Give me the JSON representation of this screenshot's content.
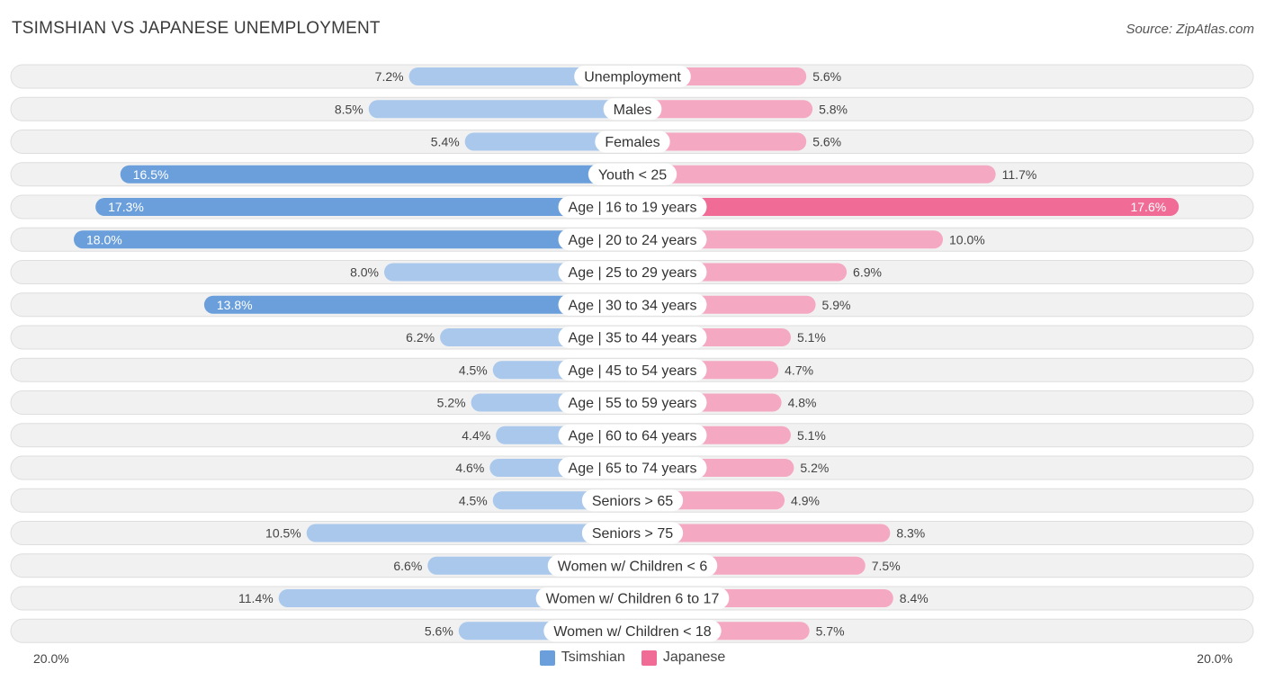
{
  "colors": {
    "tsimshian": "#6a9fdb",
    "tsimshian_light": "#a9c8ec",
    "japanese": "#f06b96",
    "japanese_light": "#f5a8c1",
    "row_bg": "#f1f1f1",
    "row_border": "#dedede"
  },
  "chart_data": {
    "type": "bar",
    "orientation": "diverging-horizontal",
    "title": "TSIMSHIAN VS JAPANESE UNEMPLOYMENT",
    "source": "Source: ZipAtlas.com",
    "axis_min_label": "20.0%",
    "axis_max_label": "20.0%",
    "max_value": 20,
    "categories": [
      "Unemployment",
      "Males",
      "Females",
      "Youth < 25",
      "Age | 16 to 19 years",
      "Age | 20 to 24 years",
      "Age | 25 to 29 years",
      "Age | 30 to 34 years",
      "Age | 35 to 44 years",
      "Age | 45 to 54 years",
      "Age | 55 to 59 years",
      "Age | 60 to 64 years",
      "Age | 65 to 74 years",
      "Seniors > 65",
      "Seniors > 75",
      "Women w/ Children < 6",
      "Women w/ Children 6 to 17",
      "Women w/ Children < 18"
    ],
    "series": [
      {
        "name": "Tsimshian",
        "values": [
          7.2,
          8.5,
          5.4,
          16.5,
          17.3,
          18.0,
          8.0,
          13.8,
          6.2,
          4.5,
          5.2,
          4.4,
          4.6,
          4.5,
          10.5,
          6.6,
          11.4,
          5.6
        ],
        "labels": [
          "7.2%",
          "8.5%",
          "5.4%",
          "16.5%",
          "17.3%",
          "18.0%",
          "8.0%",
          "13.8%",
          "6.2%",
          "4.5%",
          "5.2%",
          "4.4%",
          "4.6%",
          "4.5%",
          "10.5%",
          "6.6%",
          "11.4%",
          "5.6%"
        ]
      },
      {
        "name": "Japanese",
        "values": [
          5.6,
          5.8,
          5.6,
          11.7,
          17.6,
          10.0,
          6.9,
          5.9,
          5.1,
          4.7,
          4.8,
          5.1,
          5.2,
          4.9,
          8.3,
          7.5,
          8.4,
          5.7
        ],
        "labels": [
          "5.6%",
          "5.8%",
          "5.6%",
          "11.7%",
          "17.6%",
          "10.0%",
          "6.9%",
          "5.9%",
          "5.1%",
          "4.7%",
          "4.8%",
          "5.1%",
          "5.2%",
          "4.9%",
          "8.3%",
          "7.5%",
          "8.4%",
          "5.7%"
        ]
      }
    ],
    "legend": [
      "Tsimshian",
      "Japanese"
    ]
  }
}
